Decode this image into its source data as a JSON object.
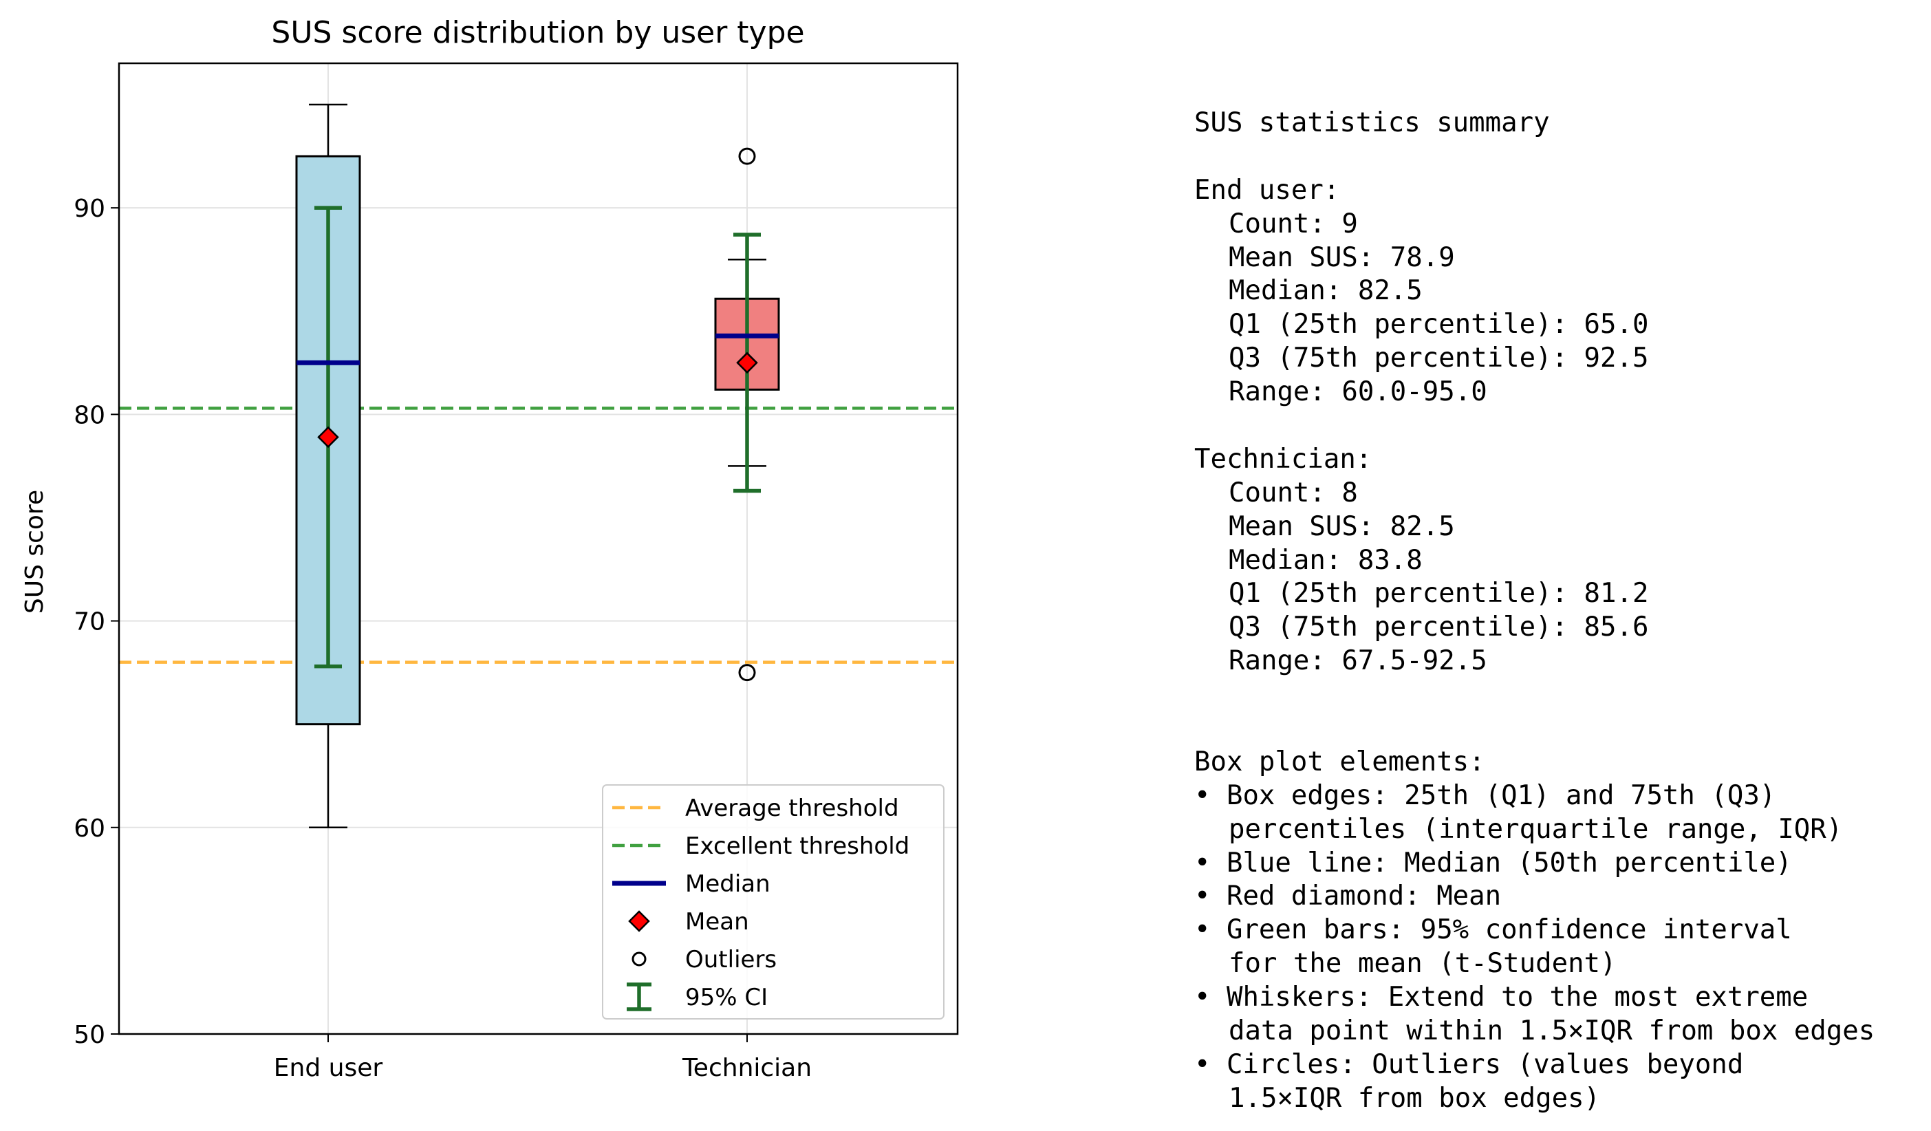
{
  "chart_data": {
    "type": "box",
    "title": "SUS score distribution by user type",
    "xlabel": "",
    "ylabel": "SUS score",
    "ylim": [
      50,
      97
    ],
    "yticks": [
      50,
      60,
      70,
      80,
      90
    ],
    "grid": true,
    "categories": [
      "End user",
      "Technician"
    ],
    "colors": {
      "end_user_box": "#add8e6",
      "technician_box": "#f08080",
      "median": "#00008b",
      "mean": "#ff0000",
      "ci": "#1f6e2a",
      "average_threshold": "#ffb740",
      "excellent_threshold": "#40a040"
    },
    "boxes": [
      {
        "name": "End user",
        "q1": 65.0,
        "median": 82.5,
        "q3": 92.5,
        "whisker_low": 60.0,
        "whisker_high": 95.0,
        "mean": 78.9,
        "ci_low": 67.8,
        "ci_high": 90.0,
        "outliers": []
      },
      {
        "name": "Technician",
        "q1": 81.2,
        "median": 83.8,
        "q3": 85.6,
        "whisker_low": 77.5,
        "whisker_high": 87.5,
        "mean": 82.5,
        "ci_low": 76.3,
        "ci_high": 88.7,
        "outliers": [
          92.5,
          67.5
        ]
      }
    ],
    "reference_lines": [
      {
        "name": "Average threshold",
        "y": 68,
        "style": "dashed"
      },
      {
        "name": "Excellent threshold",
        "y": 80.3,
        "style": "dashed"
      }
    ],
    "legend_position": "lower-right",
    "legend": [
      "Average threshold",
      "Excellent threshold",
      "Median",
      "Mean",
      "Outliers",
      "95% CI"
    ]
  },
  "summary": {
    "heading": "SUS statistics summary",
    "groups": [
      {
        "name": "End user:",
        "lines": [
          "Count: 9",
          "Mean SUS: 78.9",
          "Median: 82.5",
          "Q1 (25th percentile): 65.0",
          "Q3 (75th percentile): 92.5",
          "Range: 60.0-95.0"
        ]
      },
      {
        "name": "Technician:",
        "lines": [
          "Count: 8",
          "Mean SUS: 82.5",
          "Median: 83.8",
          "Q1 (25th percentile): 81.2",
          "Q3 (75th percentile): 85.6",
          "Range: 67.5-92.5"
        ]
      }
    ],
    "elements_heading": "Box plot elements:",
    "elements": [
      [
        "• Box edges: 25th (Q1) and 75th (Q3)",
        "percentiles (interquartile range, IQR)"
      ],
      [
        "• Blue line: Median (50th percentile)"
      ],
      [
        "• Red diamond: Mean"
      ],
      [
        "• Green bars: 95% confidence interval",
        "for the mean (t-Student)"
      ],
      [
        "• Whiskers: Extend to the most extreme",
        "data point within 1.5×IQR from box edges"
      ],
      [
        "• Circles: Outliers (values beyond",
        "1.5×IQR from box edges)"
      ]
    ]
  }
}
